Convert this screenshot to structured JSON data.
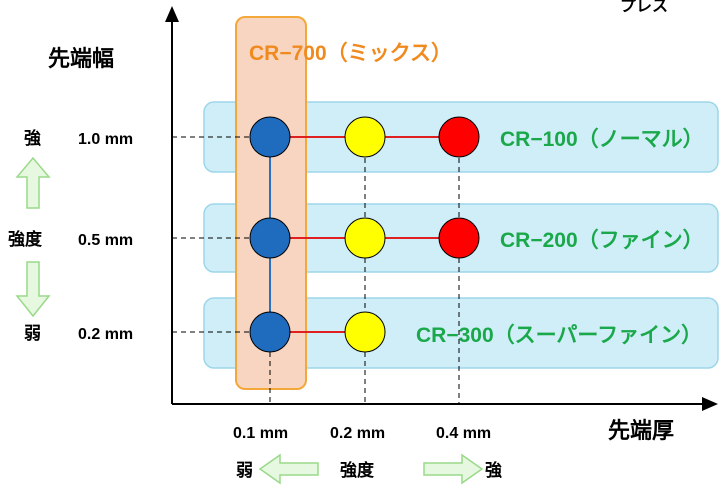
{
  "corner_text": "プレス",
  "y_axis": {
    "label": "先端幅",
    "ticks": [
      "1.0 mm",
      "0.5 mm",
      "0.2 mm"
    ],
    "strength": {
      "strong": "強",
      "middle": "強度",
      "weak": "弱"
    }
  },
  "x_axis": {
    "label": "先端厚",
    "ticks": [
      "0.1 mm",
      "0.2 mm",
      "0.4 mm"
    ],
    "strength": {
      "weak": "弱",
      "middle": "強度",
      "strong": "強"
    }
  },
  "products": {
    "cr700": "CR−700（ミックス）",
    "cr100": "CR−100（ノーマル）",
    "cr200": "CR−200（ファイン）",
    "cr300": "CR−300（スーパーファイン）"
  },
  "colors": {
    "band_fill": "#cfeef8",
    "band_stroke": "#9ed6ea",
    "mix_fill": "#f8d5c0",
    "mix_stroke": "#f4a83a",
    "mix_text": "#f08a1e",
    "product_text": "#1aa84a",
    "dot_blue": "#1f6cbf",
    "dot_yellow": "#ffff00",
    "dot_red": "#ff0000",
    "connector_red": "#e02020",
    "connector_blue": "#2a72c0",
    "arrow_fill": "#e6f8e0",
    "arrow_stroke": "#9ad98a"
  }
}
